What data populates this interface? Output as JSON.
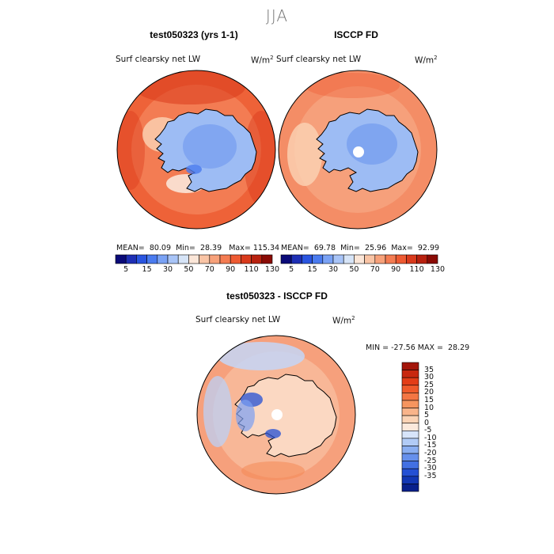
{
  "season": "JJA",
  "panels": [
    {
      "title": "test050323 (yrs 1-1)",
      "variable": "Surf clearsky net LW",
      "unit": "W/m",
      "unit_exp": "2",
      "stats": {
        "mean_label": "MEAN=",
        "mean": "80.09",
        "min_label": "Min=",
        "min": "28.39",
        "max_label": "Max=",
        "max": "115.34"
      },
      "colorbar": {
        "ticks": [
          "5",
          "15",
          "30",
          "50",
          "70",
          "90",
          "110",
          "130"
        ],
        "colors": [
          "#0a0a78",
          "#1e2fb5",
          "#2a55e0",
          "#4a7bef",
          "#7aa2f5",
          "#a8c4f7",
          "#d6e4f7",
          "#fbe6d8",
          "#f9c4a5",
          "#f7a17a",
          "#f47c52",
          "#ee5a32",
          "#d93a1c",
          "#b8210f",
          "#8a0b05"
        ]
      },
      "map_fields": {
        "ocean": "#ee6238",
        "ocean_inner": "#f5885f",
        "land": "#9dbcf4",
        "land_deep": "#6e98ee"
      }
    },
    {
      "title": "ISCCP FD",
      "variable": "Surf clearsky net LW",
      "unit": "W/m",
      "unit_exp": "2",
      "stats": {
        "mean_label": "MEAN=",
        "mean": "69.78",
        "min_label": "Min=",
        "min": "25.96",
        "max_label": "Max=",
        "max": "92.99"
      },
      "colorbar": {
        "ticks": [
          "5",
          "15",
          "30",
          "50",
          "70",
          "90",
          "110",
          "130"
        ],
        "colors": [
          "#0a0a78",
          "#1e2fb5",
          "#2a55e0",
          "#4a7bef",
          "#7aa2f5",
          "#a8c4f7",
          "#d6e4f7",
          "#fbe6d8",
          "#f9c4a5",
          "#f7a17a",
          "#f47c52",
          "#ee5a32",
          "#d93a1c",
          "#b8210f",
          "#8a0b05"
        ]
      },
      "map_fields": {
        "ocean": "#f48d66",
        "ocean_inner": "#f7a884",
        "land": "#9dbcf4",
        "land_deep": "#6e98ee"
      }
    }
  ],
  "diff": {
    "title": "test050323 - ISCCP FD",
    "variable": "Surf clearsky net LW",
    "unit": "W/m",
    "unit_exp": "2",
    "stats": {
      "min_label": "MIN =",
      "min": "-27.56",
      "max_label": "MAX =",
      "max": "28.29"
    },
    "colorbar": {
      "ticks": [
        "35",
        "30",
        "25",
        "20",
        "15",
        "10",
        "5",
        "0",
        "-5",
        "-10",
        "-15",
        "-20",
        "-25",
        "-30",
        "-35"
      ],
      "colors": [
        "#a3150a",
        "#c8280f",
        "#e33d17",
        "#ef5a2b",
        "#f37644",
        "#f6955f",
        "#f9b48a",
        "#fbd3b5",
        "#fbe9dc",
        "#d7e4fa",
        "#b1cbf6",
        "#8aaef1",
        "#6690ec",
        "#4270e3",
        "#2450d4",
        "#1237b4",
        "#08208c"
      ]
    },
    "map_fields": {
      "ocean": "#f6a07c",
      "ocean_inner": "#f9c1a2",
      "land": "#fbd8c2",
      "blue": "#7aa0f2"
    }
  }
}
